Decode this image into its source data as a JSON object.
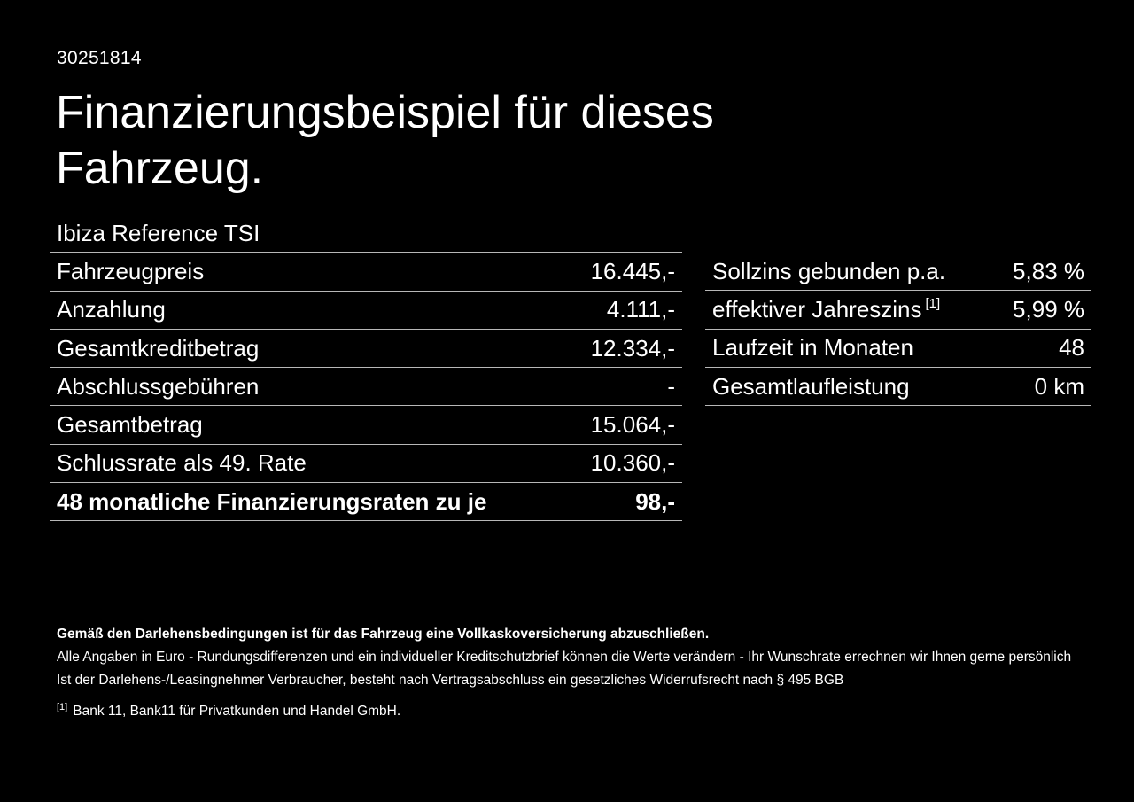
{
  "page": {
    "id_number": "30251814",
    "title_line1": "Finanzierungsbeispiel für dieses",
    "title_line2": "Fahrzeug."
  },
  "left_table": {
    "header": "Ibiza Reference TSI",
    "rows": [
      {
        "label": "Fahrzeugpreis",
        "value": "16.445,-"
      },
      {
        "label": "Anzahlung",
        "value": "4.111,-"
      },
      {
        "label": "Gesamtkreditbetrag",
        "value": "12.334,-"
      },
      {
        "label": "Abschlussgebühren",
        "value": "-"
      },
      {
        "label": "Gesamtbetrag",
        "value": "15.064,-"
      },
      {
        "label": "Schlussrate als 49. Rate",
        "value": "10.360,-"
      },
      {
        "label": "48 monatliche Finanzierungsraten zu je",
        "value": "98,-"
      }
    ]
  },
  "right_table": {
    "rows": [
      {
        "label": "Sollzins gebunden p.a.",
        "value": "5,83 %"
      },
      {
        "label": "effektiver Jahreszins",
        "label_sup": "[1]",
        "value": "5,99 %"
      },
      {
        "label": "Laufzeit in Monaten",
        "value": "48"
      },
      {
        "label": "Gesamtlaufleistung",
        "value": "0 km"
      }
    ]
  },
  "footer": {
    "bold_line": "Gemäß den Darlehensbedingungen ist für das Fahrzeug eine Vollkaskoversicherung abzuschließen.",
    "line2": "Alle Angaben in Euro - Rundungsdifferenzen und ein individueller Kreditschutzbrief können die Werte verändern - Ihr Wunschrate errechnen wir Ihnen gerne persönlich",
    "line3": "Ist der Darlehens-/Leasingnehmer Verbraucher, besteht nach Vertragsabschluss ein gesetzliches Widerrufsrecht nach § 495 BGB",
    "footnote_marker": "[1]",
    "footnote_text": "Bank 11, Bank11 für Privatkunden und Handel GmbH."
  },
  "colors": {
    "background": "#000000",
    "text": "#ffffff",
    "divider": "#b8b8b8"
  }
}
